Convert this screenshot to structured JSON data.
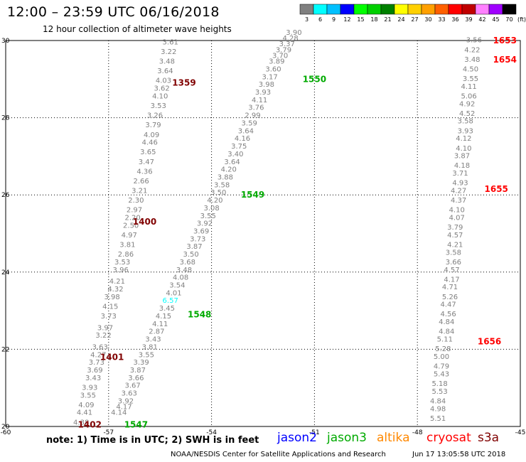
{
  "header": {
    "title": "12:00 – 23:59 UTC 06/16/2018",
    "subtitle": "12 hour collection of altimeter wave heights"
  },
  "footer": {
    "note": "note: 1) Time is in UTC; 2) SWH is in feet",
    "credit": "NOAA/NESDIS Center for Satellite Applications and Research",
    "timestamp": "Jun 17 13:05:58 UTC 2018"
  },
  "satellites": [
    {
      "label": "jason2",
      "color": "#0000ff"
    },
    {
      "label": "jason3",
      "color": "#00aa00"
    },
    {
      "label": "altika",
      "color": "#ff8800"
    },
    {
      "label": "cryosat",
      "color": "#ff0000"
    },
    {
      "label": "s3a",
      "color": "#800000"
    }
  ],
  "chart_data": {
    "type": "scatter",
    "title": "12:00 – 23:59 UTC 06/16/2018",
    "subtitle": "12 hour collection of altimeter wave heights",
    "xlim": [
      -60,
      -45
    ],
    "ylim": [
      20,
      30
    ],
    "grid": true,
    "x_ticks": [
      "-60",
      "-57",
      "-54",
      "-51",
      "-48",
      "-45"
    ],
    "y_ticks": [
      "20",
      "22",
      "24",
      "26",
      "28",
      "30"
    ],
    "y_tick_values": [
      20,
      22,
      24,
      26,
      28,
      30
    ],
    "colorbar": {
      "unit": "(ft)",
      "labels": [
        "3",
        "6",
        "9",
        "12",
        "15",
        "18",
        "21",
        "24",
        "27",
        "30",
        "33",
        "36",
        "39",
        "42",
        "45",
        "70"
      ],
      "colors": [
        "#808080",
        "#00ffff",
        "#00c0ff",
        "#0000ff",
        "#00ff00",
        "#00d000",
        "#008000",
        "#ffff00",
        "#ffd000",
        "#ffa000",
        "#ff6000",
        "#ff0000",
        "#c00000",
        "#ff80ff",
        "#a000ff",
        "#000000"
      ]
    },
    "tracks": [
      {
        "satellite": "s3a",
        "times": [
          {
            "label": "1402",
            "x": -57.55,
            "y": 20.05
          },
          {
            "label": "1401",
            "x": -56.9,
            "y": 21.8
          },
          {
            "label": "1400",
            "x": -55.95,
            "y": 25.3
          },
          {
            "label": "1359",
            "x": -54.8,
            "y": 28.9
          }
        ],
        "points": [
          {
            "v": "4.38",
            "x": -57.8,
            "y": 20.05
          },
          {
            "v": "4.41",
            "x": -57.7,
            "y": 20.3
          },
          {
            "v": "4.09",
            "x": -57.65,
            "y": 20.5
          },
          {
            "v": "3.55",
            "x": -57.6,
            "y": 20.75
          },
          {
            "v": "3.93",
            "x": -57.55,
            "y": 20.95
          },
          {
            "v": "3.43",
            "x": -57.45,
            "y": 21.2
          },
          {
            "v": "3.69",
            "x": -57.4,
            "y": 21.4
          },
          {
            "v": "3.73",
            "x": -57.35,
            "y": 21.6
          },
          {
            "v": "4.27",
            "x": -57.3,
            "y": 21.8
          },
          {
            "v": "3.63",
            "x": -57.25,
            "y": 22.0
          },
          {
            "v": "3.22",
            "x": -57.15,
            "y": 22.3
          },
          {
            "v": "3.97",
            "x": -57.1,
            "y": 22.5
          },
          {
            "v": "3.73",
            "x": -57.0,
            "y": 22.8
          },
          {
            "v": "4.15",
            "x": -56.95,
            "y": 23.05
          },
          {
            "v": "3.98",
            "x": -56.9,
            "y": 23.3
          },
          {
            "v": "4.32",
            "x": -56.8,
            "y": 23.5
          },
          {
            "v": "4.21",
            "x": -56.75,
            "y": 23.7
          },
          {
            "v": "3.96",
            "x": -56.65,
            "y": 24.0
          },
          {
            "v": "3.53",
            "x": -56.6,
            "y": 24.2
          },
          {
            "v": "2.86",
            "x": -56.5,
            "y": 24.4
          },
          {
            "v": "3.81",
            "x": -56.45,
            "y": 24.65
          },
          {
            "v": "4.97",
            "x": -56.4,
            "y": 24.9
          },
          {
            "v": "2.50",
            "x": -56.35,
            "y": 25.15
          },
          {
            "v": "2.20",
            "x": -56.3,
            "y": 25.35
          },
          {
            "v": "2.97",
            "x": -56.25,
            "y": 25.55
          },
          {
            "v": "2.30",
            "x": -56.2,
            "y": 25.8
          },
          {
            "v": "3.21",
            "x": -56.1,
            "y": 26.05
          },
          {
            "v": "2.66",
            "x": -56.05,
            "y": 26.3
          },
          {
            "v": "4.36",
            "x": -55.95,
            "y": 26.55
          },
          {
            "v": "3.47",
            "x": -55.9,
            "y": 26.8
          },
          {
            "v": "3.65",
            "x": -55.85,
            "y": 27.05
          },
          {
            "v": "4.46",
            "x": -55.8,
            "y": 27.3
          },
          {
            "v": "4.09",
            "x": -55.75,
            "y": 27.5
          },
          {
            "v": "3.79",
            "x": -55.7,
            "y": 27.75
          },
          {
            "v": "3.26",
            "x": -55.65,
            "y": 28.0
          },
          {
            "v": "3.53",
            "x": -55.55,
            "y": 28.25
          },
          {
            "v": "4.10",
            "x": -55.5,
            "y": 28.5
          },
          {
            "v": "3.62",
            "x": -55.45,
            "y": 28.7
          },
          {
            "v": "4.03",
            "x": -55.4,
            "y": 28.9
          },
          {
            "v": "3.64",
            "x": -55.35,
            "y": 29.15
          },
          {
            "v": "3.48",
            "x": -55.3,
            "y": 29.4
          },
          {
            "v": "3.22",
            "x": -55.25,
            "y": 29.65
          },
          {
            "v": "3.61",
            "x": -55.2,
            "y": 29.9
          }
        ]
      },
      {
        "satellite": "jason3",
        "times": [
          {
            "label": "1547",
            "x": -56.2,
            "y": 20.05
          },
          {
            "label": "1548",
            "x": -54.35,
            "y": 22.9
          },
          {
            "label": "1549",
            "x": -52.8,
            "y": 26.0
          },
          {
            "label": "1550",
            "x": -51.0,
            "y": 29.0
          }
        ],
        "points": [
          {
            "v": "4.14",
            "x": -56.7,
            "y": 20.3
          },
          {
            "v": "4.17",
            "x": -56.55,
            "y": 20.45
          },
          {
            "v": "3.92",
            "x": -56.5,
            "y": 20.6
          },
          {
            "v": "3.63",
            "x": -56.4,
            "y": 20.8
          },
          {
            "v": "3.67",
            "x": -56.3,
            "y": 21.0
          },
          {
            "v": "3.66",
            "x": -56.2,
            "y": 21.2
          },
          {
            "v": "3.87",
            "x": -56.15,
            "y": 21.4
          },
          {
            "v": "3.39",
            "x": -56.05,
            "y": 21.6
          },
          {
            "v": "3.55",
            "x": -55.9,
            "y": 21.8
          },
          {
            "v": "3.81",
            "x": -55.8,
            "y": 22.0
          },
          {
            "v": "3.43",
            "x": -55.7,
            "y": 22.2
          },
          {
            "v": "2.87",
            "x": -55.6,
            "y": 22.4
          },
          {
            "v": "4.11",
            "x": -55.5,
            "y": 22.6
          },
          {
            "v": "4.15",
            "x": -55.4,
            "y": 22.8
          },
          {
            "v": "3.45",
            "x": -55.3,
            "y": 23.0
          },
          {
            "v": "6.57",
            "x": -55.2,
            "y": 23.2
          },
          {
            "v": "4.01",
            "x": -55.1,
            "y": 23.4
          },
          {
            "v": "3.54",
            "x": -55.0,
            "y": 23.6
          },
          {
            "v": "4.08",
            "x": -54.9,
            "y": 23.8
          },
          {
            "v": "3.48",
            "x": -54.8,
            "y": 24.0
          },
          {
            "v": "3.68",
            "x": -54.7,
            "y": 24.2
          },
          {
            "v": "3.50",
            "x": -54.6,
            "y": 24.4
          },
          {
            "v": "3.87",
            "x": -54.5,
            "y": 24.6
          },
          {
            "v": "3.73",
            "x": -54.4,
            "y": 24.8
          },
          {
            "v": "3.69",
            "x": -54.3,
            "y": 25.0
          },
          {
            "v": "3.92",
            "x": -54.2,
            "y": 25.2
          },
          {
            "v": "3.55",
            "x": -54.1,
            "y": 25.4
          },
          {
            "v": "3.08",
            "x": -54.0,
            "y": 25.6
          },
          {
            "v": "4.20",
            "x": -53.9,
            "y": 25.8
          },
          {
            "v": "3.50",
            "x": -53.8,
            "y": 26.0
          },
          {
            "v": "3.58",
            "x": -53.7,
            "y": 26.2
          },
          {
            "v": "3.88",
            "x": -53.6,
            "y": 26.4
          },
          {
            "v": "4.20",
            "x": -53.5,
            "y": 26.6
          },
          {
            "v": "3.64",
            "x": -53.4,
            "y": 26.8
          },
          {
            "v": "3.40",
            "x": -53.3,
            "y": 27.0
          },
          {
            "v": "3.75",
            "x": -53.2,
            "y": 27.2
          },
          {
            "v": "4.16",
            "x": -53.1,
            "y": 27.4
          },
          {
            "v": "3.64",
            "x": -53.0,
            "y": 27.6
          },
          {
            "v": "3.59",
            "x": -52.9,
            "y": 27.8
          },
          {
            "v": "2.99",
            "x": -52.8,
            "y": 28.0
          },
          {
            "v": "3.76",
            "x": -52.7,
            "y": 28.2
          },
          {
            "v": "4.11",
            "x": -52.6,
            "y": 28.4
          },
          {
            "v": "3.93",
            "x": -52.5,
            "y": 28.6
          },
          {
            "v": "3.98",
            "x": -52.4,
            "y": 28.8
          },
          {
            "v": "3.17",
            "x": -52.3,
            "y": 29.0
          },
          {
            "v": "3.60",
            "x": -52.2,
            "y": 29.2
          },
          {
            "v": "3.89",
            "x": -52.1,
            "y": 29.4
          },
          {
            "v": "3.70",
            "x": -52.0,
            "y": 29.55
          },
          {
            "v": "3.79",
            "x": -51.9,
            "y": 29.7
          },
          {
            "v": "3.37",
            "x": -51.8,
            "y": 29.85
          },
          {
            "v": "4.28",
            "x": -51.7,
            "y": 30.0
          },
          {
            "v": "3.90",
            "x": -51.6,
            "y": 30.15
          }
        ]
      },
      {
        "satellite": "cryosat",
        "times": [
          {
            "label": "1653",
            "x": -45.45,
            "y": 30.0
          },
          {
            "label": "1654",
            "x": -45.45,
            "y": 29.5
          },
          {
            "label": "1655",
            "x": -45.7,
            "y": 26.15
          },
          {
            "label": "1656",
            "x": -45.9,
            "y": 22.2
          }
        ],
        "points": [
          {
            "v": "5.51",
            "x": -47.4,
            "y": 20.15
          },
          {
            "v": "4.98",
            "x": -47.4,
            "y": 20.4
          },
          {
            "v": "4.84",
            "x": -47.4,
            "y": 20.6
          },
          {
            "v": "5.53",
            "x": -47.35,
            "y": 20.85
          },
          {
            "v": "5.18",
            "x": -47.35,
            "y": 21.05
          },
          {
            "v": "5.43",
            "x": -47.3,
            "y": 21.3
          },
          {
            "v": "4.79",
            "x": -47.3,
            "y": 21.5
          },
          {
            "v": "5.00",
            "x": -47.3,
            "y": 21.75
          },
          {
            "v": "5.28",
            "x": -47.25,
            "y": 21.95
          },
          {
            "v": "5.11",
            "x": -47.2,
            "y": 22.2
          },
          {
            "v": "4.84",
            "x": -47.15,
            "y": 22.4
          },
          {
            "v": "4.84",
            "x": -47.15,
            "y": 22.65
          },
          {
            "v": "4.56",
            "x": -47.1,
            "y": 22.85
          },
          {
            "v": "4.47",
            "x": -47.1,
            "y": 23.1
          },
          {
            "v": "5.26",
            "x": -47.05,
            "y": 23.3
          },
          {
            "v": "4.71",
            "x": -47.05,
            "y": 23.55
          },
          {
            "v": "4.17",
            "x": -47.0,
            "y": 23.75
          },
          {
            "v": "4.57",
            "x": -47.0,
            "y": 24.0
          },
          {
            "v": "3.66",
            "x": -46.95,
            "y": 24.2
          },
          {
            "v": "3.58",
            "x": -46.95,
            "y": 24.45
          },
          {
            "v": "4.21",
            "x": -46.9,
            "y": 24.65
          },
          {
            "v": "4.57",
            "x": -46.9,
            "y": 24.9
          },
          {
            "v": "3.79",
            "x": -46.9,
            "y": 25.1
          },
          {
            "v": "4.07",
            "x": -46.85,
            "y": 25.35
          },
          {
            "v": "4.10",
            "x": -46.85,
            "y": 25.55
          },
          {
            "v": "4.37",
            "x": -46.8,
            "y": 25.8
          },
          {
            "v": "4.27",
            "x": -46.8,
            "y": 26.05
          },
          {
            "v": "4.93",
            "x": -46.75,
            "y": 26.25
          },
          {
            "v": "3.71",
            "x": -46.75,
            "y": 26.5
          },
          {
            "v": "4.18",
            "x": -46.7,
            "y": 26.7
          },
          {
            "v": "3.87",
            "x": -46.7,
            "y": 26.95
          },
          {
            "v": "4.10",
            "x": -46.65,
            "y": 27.15
          },
          {
            "v": "4.12",
            "x": -46.65,
            "y": 27.4
          },
          {
            "v": "3.93",
            "x": -46.6,
            "y": 27.6
          },
          {
            "v": "3.58",
            "x": -46.6,
            "y": 27.85
          },
          {
            "v": "4.52",
            "x": -46.55,
            "y": 28.05
          },
          {
            "v": "4.92",
            "x": -46.55,
            "y": 28.3
          },
          {
            "v": "5.06",
            "x": -46.5,
            "y": 28.5
          },
          {
            "v": "4.11",
            "x": -46.5,
            "y": 28.75
          },
          {
            "v": "3.55",
            "x": -46.45,
            "y": 28.95
          },
          {
            "v": "4.50",
            "x": -46.45,
            "y": 29.2
          },
          {
            "v": "3.48",
            "x": -46.4,
            "y": 29.45
          },
          {
            "v": "4.22",
            "x": -46.4,
            "y": 29.7
          },
          {
            "v": "3.56",
            "x": -46.35,
            "y": 29.95
          }
        ]
      }
    ]
  }
}
